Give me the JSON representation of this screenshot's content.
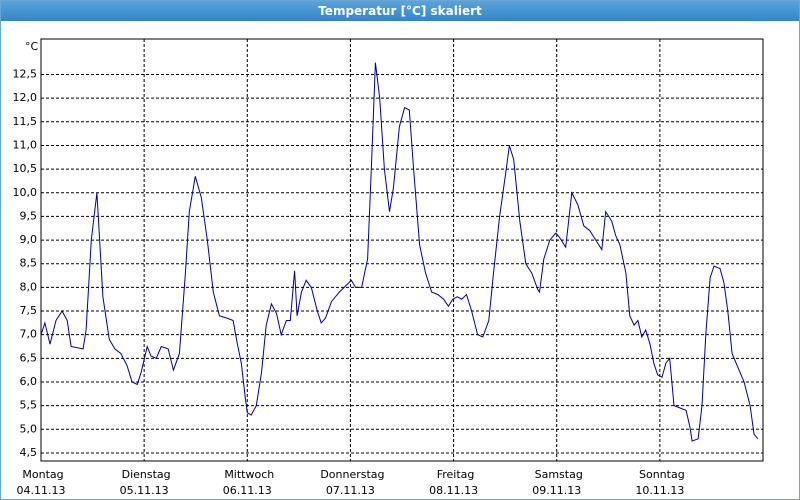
{
  "chart_data": {
    "type": "line",
    "title": "Temperatur [°C] skaliert",
    "y_unit": "°C",
    "xlim": [
      0,
      168
    ],
    "ylim": [
      4.33,
      13.25
    ],
    "grid": true,
    "xticks": [
      {
        "value": 0,
        "label": "Montag",
        "date": "04.11.13"
      },
      {
        "value": 24,
        "label": "Dienstag",
        "date": "05.11.13"
      },
      {
        "value": 48,
        "label": "Mittwoch",
        "date": "06.11.13"
      },
      {
        "value": 72,
        "label": "Donnerstag",
        "date": "07.11.13"
      },
      {
        "value": 96,
        "label": "Freitag",
        "date": "08.11.13"
      },
      {
        "value": 120,
        "label": "Samstag",
        "date": "09.11.13"
      },
      {
        "value": 144,
        "label": "Sonntag",
        "date": "10.11.13"
      }
    ],
    "yticks": [
      {
        "value": 4.5,
        "label": "4,5"
      },
      {
        "value": 5.0,
        "label": "5,0"
      },
      {
        "value": 5.5,
        "label": "5,5"
      },
      {
        "value": 6.0,
        "label": "6,0"
      },
      {
        "value": 6.5,
        "label": "6,5"
      },
      {
        "value": 7.0,
        "label": "7,0"
      },
      {
        "value": 7.5,
        "label": "7,5"
      },
      {
        "value": 8.0,
        "label": "8,0"
      },
      {
        "value": 8.5,
        "label": "8,5"
      },
      {
        "value": 9.0,
        "label": "9,0"
      },
      {
        "value": 9.5,
        "label": "9,5"
      },
      {
        "value": 10.0,
        "label": "10,0"
      },
      {
        "value": 10.5,
        "label": "10,5"
      },
      {
        "value": 11.0,
        "label": "11,0"
      },
      {
        "value": 11.5,
        "label": "11,5"
      },
      {
        "value": 12.0,
        "label": "12,0"
      },
      {
        "value": 12.5,
        "label": "12,5"
      }
    ],
    "color": "#0000a0",
    "x": [
      0,
      0.9,
      2.1,
      3.5,
      4.9,
      6.1,
      7.0,
      9.8,
      10.5,
      11.7,
      13.0,
      14.4,
      15.9,
      17.2,
      18.6,
      20.0,
      21.2,
      22.4,
      23.3,
      24.7,
      25.6,
      26.8,
      28.0,
      29.6,
      30.8,
      32.2,
      33.6,
      34.5,
      35.9,
      37.3,
      38.7,
      40.1,
      41.5,
      43.3,
      44.7,
      45.7,
      46.6,
      47.5,
      48.0,
      48.9,
      50.1,
      51.3,
      52.4,
      53.6,
      54.8,
      55.9,
      57.1,
      58.0,
      59.0,
      59.6,
      60.6,
      61.7,
      62.9,
      64.3,
      65.2,
      66.2,
      67.6,
      69.4,
      71.1,
      72.2,
      73.2,
      74.6,
      76.0,
      76.9,
      77.8,
      78.8,
      79.9,
      81.1,
      82.0,
      83.4,
      84.6,
      85.7,
      86.7,
      88.1,
      89.5,
      90.9,
      92.3,
      93.7,
      94.8,
      95.8,
      96.9,
      97.9,
      99.0,
      100.2,
      101.6,
      102.8,
      104.2,
      105.3,
      106.7,
      108.1,
      109.0,
      110.0,
      111.4,
      112.8,
      114.2,
      115.6,
      116.0,
      117.0,
      118.4,
      119.8,
      120.7,
      122.1,
      123.5,
      124.9,
      126.3,
      127.7,
      129.1,
      130.5,
      131.4,
      132.8,
      133.7,
      134.7,
      136.1,
      137.0,
      138.0,
      138.9,
      139.8,
      140.7,
      141.7,
      142.6,
      143.5,
      144.5,
      145.4,
      146.3,
      147.3,
      148.7,
      150.1,
      151.0,
      151.5,
      152.9,
      153.8,
      154.7,
      155.7,
      156.6,
      158.0,
      158.9,
      159.8,
      160.8,
      162.2,
      163.6,
      165.0,
      165.9,
      166.8
    ],
    "values": [
      7.0,
      7.25,
      6.8,
      7.3,
      7.5,
      7.3,
      6.75,
      6.7,
      7.1,
      9.0,
      10.0,
      7.8,
      6.9,
      6.7,
      6.6,
      6.35,
      6.0,
      5.95,
      6.2,
      6.75,
      6.55,
      6.5,
      6.75,
      6.7,
      6.25,
      6.6,
      8.3,
      9.6,
      10.35,
      9.9,
      9.0,
      7.9,
      7.4,
      7.35,
      7.3,
      6.8,
      6.4,
      5.7,
      5.35,
      5.3,
      5.5,
      6.2,
      7.2,
      7.65,
      7.45,
      7.0,
      7.3,
      7.3,
      8.35,
      7.4,
      7.9,
      8.15,
      8.0,
      7.5,
      7.25,
      7.35,
      7.7,
      7.9,
      8.05,
      8.15,
      8.0,
      8.0,
      8.6,
      10.6,
      12.75,
      12.0,
      10.5,
      9.6,
      10.1,
      11.4,
      11.8,
      11.75,
      10.5,
      8.9,
      8.3,
      7.9,
      7.85,
      7.75,
      7.6,
      7.75,
      7.8,
      7.75,
      7.85,
      7.5,
      7.0,
      6.95,
      7.3,
      8.3,
      9.5,
      10.4,
      11.0,
      10.7,
      9.4,
      8.5,
      8.3,
      7.95,
      7.9,
      8.6,
      9.0,
      9.15,
      9.05,
      8.85,
      10.0,
      9.75,
      9.3,
      9.2,
      9.0,
      8.8,
      9.6,
      9.4,
      9.1,
      8.9,
      8.3,
      7.4,
      7.2,
      7.3,
      6.95,
      7.1,
      6.8,
      6.4,
      6.15,
      6.1,
      6.4,
      6.5,
      5.5,
      5.45,
      5.4,
      5.05,
      4.75,
      4.8,
      5.5,
      7.0,
      8.2,
      8.45,
      8.4,
      8.1,
      7.5,
      6.6,
      6.3,
      6.0,
      5.5,
      4.9,
      4.8
    ]
  }
}
